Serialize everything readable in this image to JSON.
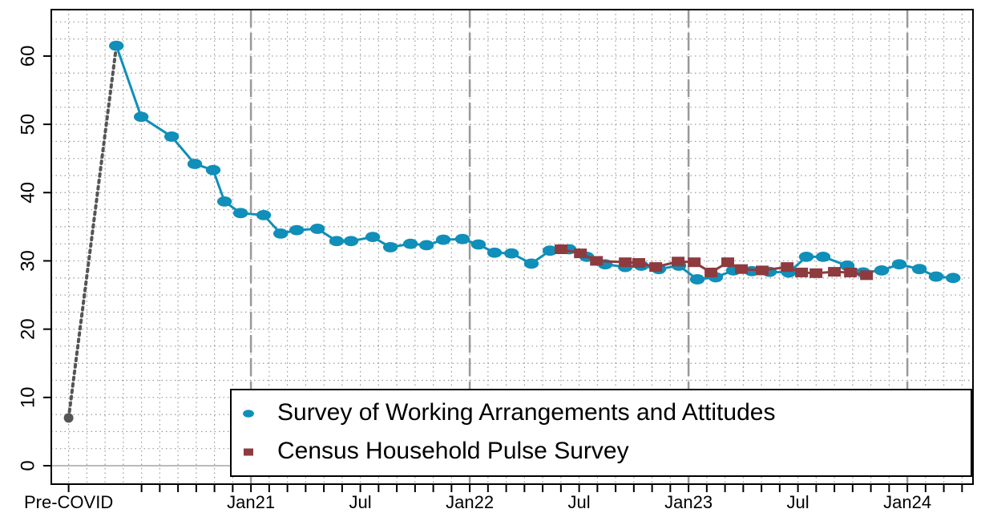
{
  "chart_data": {
    "type": "line",
    "xlim": [
      -10.95,
      39.6
    ],
    "ylim": [
      -2.7,
      66.8
    ],
    "xticks": [
      {
        "value": -10,
        "label": "Pre-COVID"
      },
      {
        "value": 0,
        "label": "Jan21"
      },
      {
        "value": 6,
        "label": "Jul"
      },
      {
        "value": 12,
        "label": "Jan22"
      },
      {
        "value": 18,
        "label": "Jul"
      },
      {
        "value": 24,
        "label": "Jan23"
      },
      {
        "value": 30,
        "label": "Jul"
      },
      {
        "value": 36,
        "label": "Jan24"
      }
    ],
    "xminorticks": [
      -6,
      -5,
      -4,
      -3,
      -2,
      -1,
      1,
      2,
      3,
      4,
      5,
      7,
      8,
      9,
      10,
      11,
      13,
      14,
      15,
      16,
      17,
      19,
      20,
      21,
      22,
      23,
      25,
      26,
      27,
      28,
      29,
      31,
      32,
      33,
      34,
      35,
      37,
      38,
      39
    ],
    "yticks": [
      0,
      10,
      20,
      30,
      40,
      50,
      60
    ],
    "xgrid": [
      -10,
      -9,
      -8,
      -7,
      -6,
      -5,
      -4,
      -3,
      -2,
      -1,
      0,
      1,
      2,
      3,
      4,
      5,
      6,
      7,
      8,
      9,
      10,
      11,
      12,
      13,
      14,
      15,
      16,
      17,
      18,
      19,
      20,
      21,
      22,
      23,
      24,
      25,
      26,
      27,
      28,
      29,
      30,
      31,
      32,
      33,
      34,
      35,
      36,
      37,
      38,
      39
    ],
    "ygrid": [
      0,
      2.5,
      5,
      7.5,
      10,
      12.5,
      15,
      17.5,
      20,
      22.5,
      25,
      27.5,
      30,
      32.5,
      35,
      37.5,
      40,
      42.5,
      45,
      47.5,
      50,
      52.5,
      55,
      57.5,
      60,
      62.5,
      65
    ],
    "vlines": [
      0,
      12,
      24,
      36
    ],
    "hline": 0,
    "legend": "lower right",
    "baseline": {
      "x": -10,
      "value": 7.0,
      "color": "#555555"
    },
    "series": [
      {
        "name": "Survey of Working Arrangements and Attitudes",
        "color": "#0f8fb9",
        "marker": "circle",
        "x": [
          -7.38,
          -6.02,
          -4.35,
          -3.08,
          -2.07,
          -1.45,
          -0.57,
          0.7,
          1.63,
          2.51,
          3.65,
          4.7,
          5.49,
          6.68,
          7.65,
          8.75,
          9.63,
          10.55,
          11.6,
          12.48,
          13.36,
          14.29,
          15.38,
          16.4,
          17.45,
          18.42,
          19.43,
          20.53,
          21.41,
          22.37,
          23.47,
          24.48,
          25.49,
          26.46,
          27.47,
          28.44,
          29.49,
          30.46,
          31.38,
          32.7,
          33.58,
          34.59,
          35.56,
          36.66,
          37.58,
          38.51
        ],
        "values": [
          61.5,
          51.1,
          48.2,
          44.2,
          43.3,
          38.7,
          37.0,
          36.7,
          34.0,
          34.5,
          34.7,
          32.9,
          32.9,
          33.5,
          32.0,
          32.5,
          32.3,
          33.1,
          33.2,
          32.4,
          31.2,
          31.1,
          29.6,
          31.5,
          31.7,
          30.6,
          29.5,
          29.1,
          29.3,
          28.8,
          29.3,
          27.3,
          27.6,
          28.6,
          28.5,
          28.4,
          28.3,
          30.6,
          30.6,
          29.3,
          28.3,
          28.6,
          29.5,
          28.8,
          27.7,
          27.5
        ]
      },
      {
        "name": "Census Household Pulse Survey",
        "color": "#8e3b3f",
        "marker": "square",
        "x": [
          17.01,
          18.07,
          18.95,
          20.53,
          21.27,
          22.2,
          23.43,
          24.31,
          25.23,
          26.15,
          26.9,
          28.04,
          29.41,
          30.2,
          30.99,
          32.0,
          32.88,
          33.76
        ],
        "values": [
          31.7,
          31.1,
          30.0,
          29.8,
          29.7,
          29.1,
          29.9,
          29.8,
          28.3,
          29.8,
          28.8,
          28.6,
          29.1,
          28.3,
          28.2,
          28.4,
          28.3,
          27.9
        ]
      }
    ]
  }
}
